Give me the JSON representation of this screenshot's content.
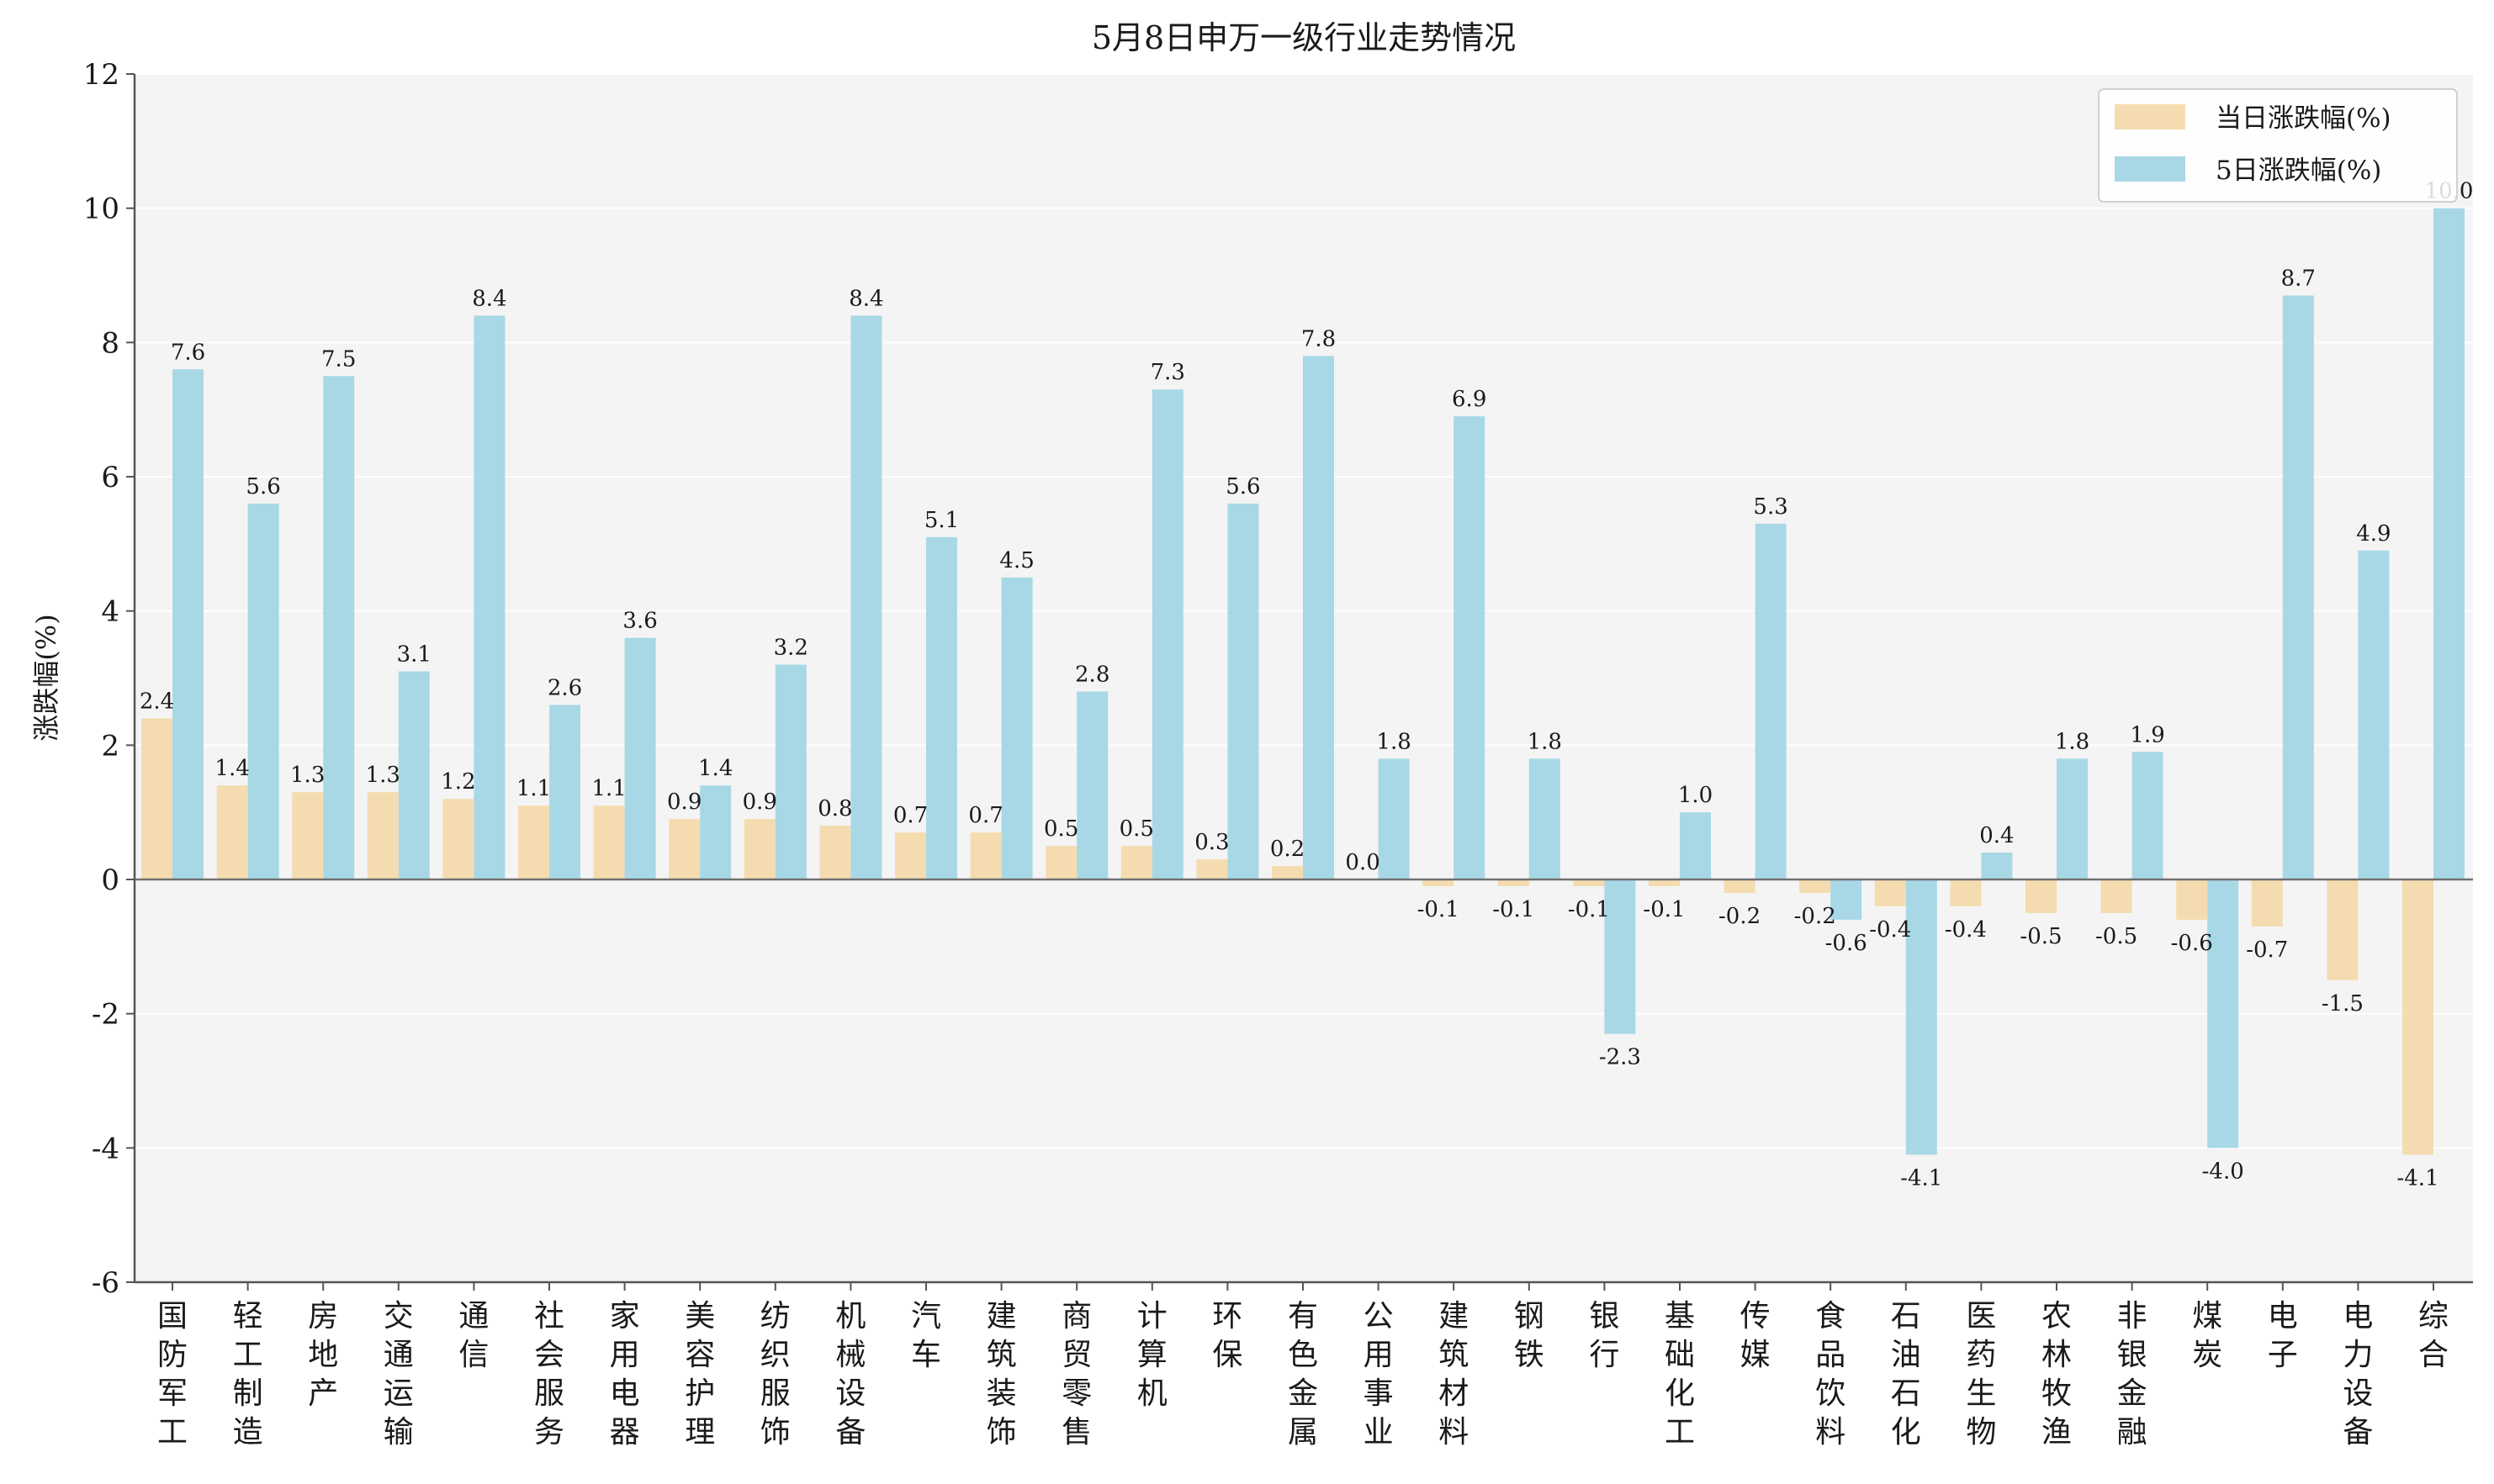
{
  "chart_data": {
    "type": "bar",
    "title": "5月8日申万一级行业走势情况",
    "ylabel": "涨跌幅(%)",
    "xlabel": "",
    "ylim": [
      -6,
      12
    ],
    "yticks": [
      -6,
      -4,
      -2,
      0,
      2,
      4,
      6,
      8,
      10,
      12
    ],
    "grid": true,
    "legend_position": "top-right",
    "categories": [
      "国防军工",
      "轻工制造",
      "房地产",
      "交通运输",
      "通信",
      "社会服务",
      "家用电器",
      "美容护理",
      "纺织服饰",
      "机械设备",
      "汽车",
      "建筑装饰",
      "商贸零售",
      "计算机",
      "环保",
      "有色金属",
      "公用事业",
      "建筑材料",
      "钢铁",
      "银行",
      "基础化工",
      "传媒",
      "食品饮料",
      "石油石化",
      "医药生物",
      "农林牧渔",
      "非银金融",
      "煤炭",
      "电子",
      "电力设备",
      "综合"
    ],
    "series": [
      {
        "name": "当日涨跌幅(%)",
        "color": "#f5dcb0",
        "values": [
          2.4,
          1.4,
          1.3,
          1.3,
          1.2,
          1.1,
          1.1,
          0.9,
          0.9,
          0.8,
          0.7,
          0.7,
          0.5,
          0.5,
          0.3,
          0.2,
          0.0,
          -0.1,
          -0.1,
          -0.1,
          -0.1,
          -0.2,
          -0.2,
          -0.4,
          -0.4,
          -0.5,
          -0.5,
          -0.6,
          -0.7,
          -1.5,
          -4.1
        ],
        "labels": [
          "2.4",
          "1.4",
          "1.3",
          "1.3",
          "1.2",
          "1.1",
          "1.1",
          "0.9",
          "0.9",
          "0.8",
          "0.7",
          "0.7",
          "0.5",
          "0.5",
          "0.3",
          "0.2",
          "0.0",
          "-0.1",
          "-0.1",
          "-0.1",
          "-0.1",
          "-0.2",
          "-0.2",
          "-0.4",
          "-0.4",
          "-0.5",
          "-0.5",
          "-0.6",
          "-0.7",
          "-1.5",
          "-4.1"
        ]
      },
      {
        "name": "5日涨跌幅(%)",
        "color": "#a8d8e6",
        "values": [
          7.6,
          5.6,
          7.5,
          3.1,
          8.4,
          2.6,
          3.6,
          1.4,
          3.2,
          8.4,
          5.1,
          4.5,
          2.8,
          7.3,
          5.6,
          7.8,
          1.8,
          6.9,
          1.8,
          -2.3,
          1.0,
          5.3,
          -0.6,
          -4.1,
          0.4,
          1.8,
          1.9,
          -4.0,
          8.7,
          4.9,
          10.0
        ],
        "labels": [
          "7.6",
          "5.6",
          "7.5",
          "3.1",
          "8.4",
          "2.6",
          "3.6",
          "1.4",
          "3.2",
          "8.4",
          "5.1",
          "4.5",
          "2.8",
          "7.3",
          "5.6",
          "7.8",
          "1.8",
          "6.9",
          "1.8",
          "-2.3",
          "1.0",
          "5.3",
          "-0.6",
          "-4.1",
          "0.4",
          "1.8",
          "1.9",
          "-4.0",
          "8.7",
          "4.9",
          "10.0"
        ]
      }
    ]
  }
}
